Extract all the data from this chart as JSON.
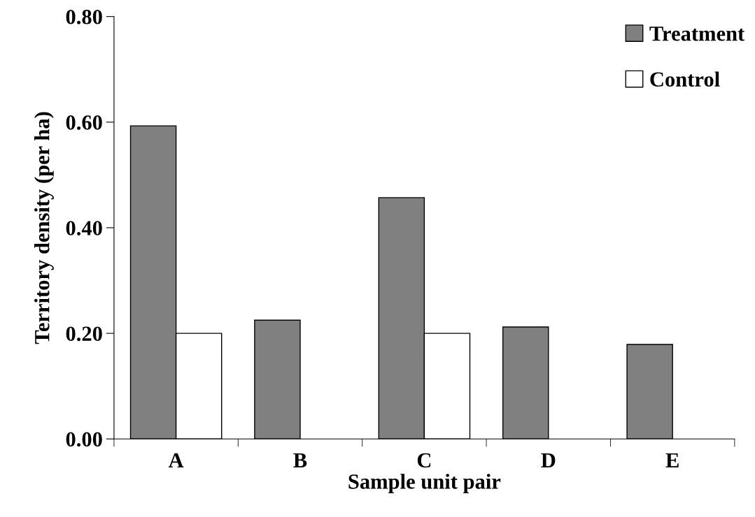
{
  "chart_data": {
    "type": "bar",
    "xlabel": "Sample unit pair",
    "ylabel": "Territory density (per ha)",
    "categories": [
      "A",
      "B",
      "C",
      "D",
      "E"
    ],
    "series": [
      {
        "name": "Treatment",
        "color": "#808080",
        "values": [
          0.593,
          0.225,
          0.457,
          0.212,
          0.179
        ]
      },
      {
        "name": "Control",
        "color": "#ffffff",
        "values": [
          0.2,
          null,
          0.2,
          null,
          null
        ]
      }
    ],
    "ylim": [
      0,
      0.8
    ],
    "yticks": [
      {
        "value": 0,
        "label": "0.00"
      },
      {
        "value": 0.2,
        "label": "0.20"
      },
      {
        "value": 0.4,
        "label": "0.40"
      },
      {
        "value": 0.6,
        "label": "0.60"
      },
      {
        "value": 0.8,
        "label": "0.80"
      }
    ],
    "grid": false,
    "legend": "top right"
  }
}
